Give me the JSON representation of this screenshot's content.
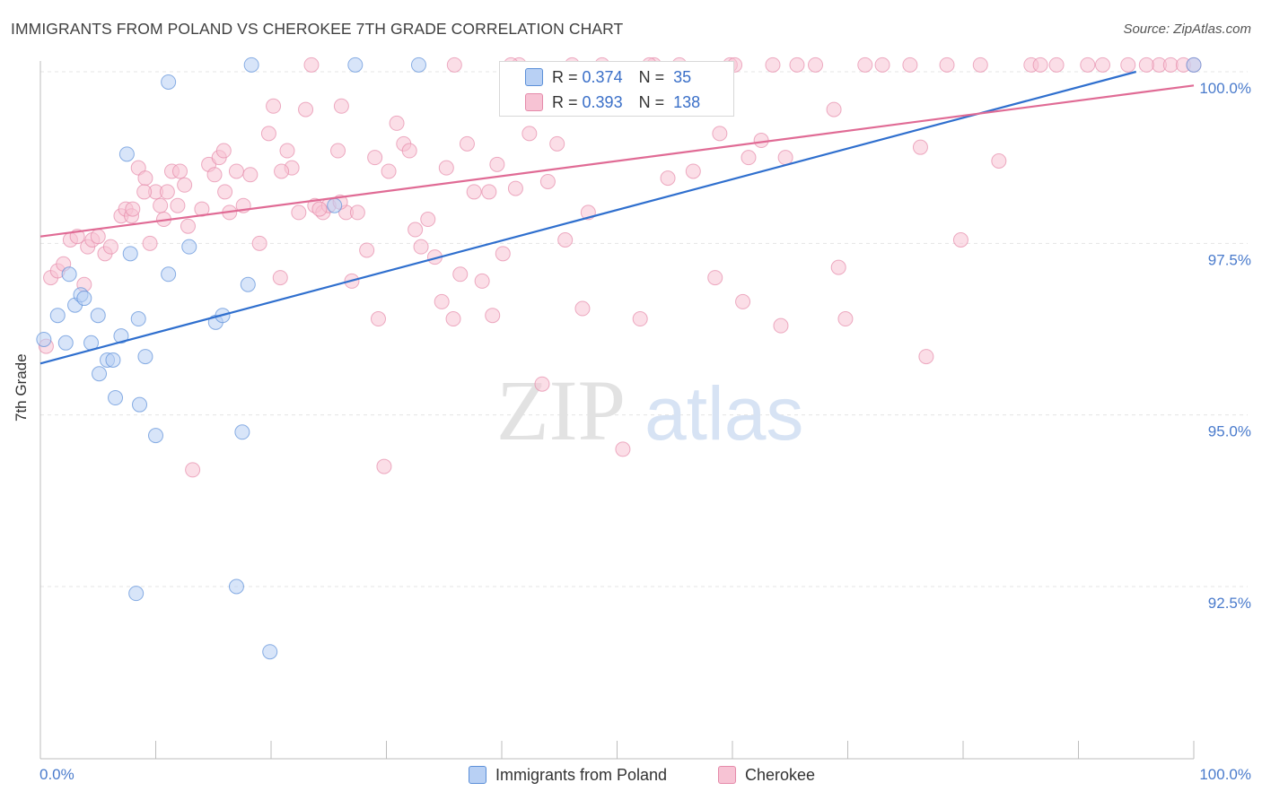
{
  "title": "IMMIGRANTS FROM POLAND VS CHEROKEE 7TH GRADE CORRELATION CHART",
  "source": "Source: ZipAtlas.com",
  "watermark": {
    "zip": "ZIP",
    "atlas": "atlas"
  },
  "colors": {
    "poland_fill": "#b8d0f4",
    "poland_stroke": "#5b8fd8",
    "poland_line": "#2f6fce",
    "cherokee_fill": "#f7c3d4",
    "cherokee_stroke": "#e58aaa",
    "cherokee_line": "#e06b95",
    "tick_label": "#4a7bcc",
    "grid": "#e4e4e4"
  },
  "legend_top": {
    "rows": [
      {
        "r_label": "R =",
        "r_value": "0.374",
        "n_label": "N =",
        "n_value": "35"
      },
      {
        "r_label": "R =",
        "r_value": "0.393",
        "n_label": "N =",
        "n_value": "138"
      }
    ]
  },
  "legend_bottom": {
    "items": [
      "Immigrants from Poland",
      "Cherokee"
    ]
  },
  "chart_data": {
    "type": "scatter",
    "title": "IMMIGRANTS FROM POLAND VS CHEROKEE 7TH GRADE CORRELATION CHART",
    "xlabel": "",
    "ylabel": "7th Grade",
    "xlim": [
      0,
      100
    ],
    "ylim": [
      90.5,
      100.2
    ],
    "x_tick_labels": [
      "0.0%",
      "100.0%"
    ],
    "y_ticks": [
      92.5,
      95.0,
      97.5,
      100.0
    ],
    "y_tick_labels": [
      "92.5%",
      "95.0%",
      "97.5%",
      "100.0%"
    ],
    "grid": "horizontal dashed",
    "legend_position": "top-center and bottom",
    "series": [
      {
        "name": "Immigrants from Poland",
        "r": 0.374,
        "n": 35,
        "trend": {
          "x": [
            0,
            95
          ],
          "y": [
            95.75,
            100.0
          ]
        },
        "points": [
          [
            0.3,
            96.1
          ],
          [
            1.5,
            96.45
          ],
          [
            2.2,
            96.05
          ],
          [
            2.5,
            97.05
          ],
          [
            3.0,
            96.6
          ],
          [
            3.5,
            96.75
          ],
          [
            3.8,
            96.7
          ],
          [
            4.4,
            96.05
          ],
          [
            5.0,
            96.45
          ],
          [
            5.8,
            95.8
          ],
          [
            6.5,
            95.25
          ],
          [
            7.0,
            96.15
          ],
          [
            7.5,
            98.8
          ],
          [
            7.8,
            97.35
          ],
          [
            8.3,
            92.4
          ],
          [
            8.5,
            96.4
          ],
          [
            8.6,
            95.15
          ],
          [
            9.1,
            95.85
          ],
          [
            10.0,
            94.7
          ],
          [
            11.1,
            97.05
          ],
          [
            11.1,
            99.85
          ],
          [
            12.9,
            97.45
          ],
          [
            15.2,
            96.35
          ],
          [
            15.8,
            96.45
          ],
          [
            17.0,
            92.5
          ],
          [
            17.5,
            94.75
          ],
          [
            18.0,
            96.9
          ],
          [
            18.3,
            100.4
          ],
          [
            19.9,
            91.55
          ],
          [
            25.5,
            98.05
          ],
          [
            27.3,
            100.4
          ],
          [
            32.8,
            100.4
          ],
          [
            5.1,
            95.6
          ],
          [
            6.3,
            95.8
          ],
          [
            100,
            100.4
          ]
        ]
      },
      {
        "name": "Cherokee",
        "r": 0.393,
        "n": 138,
        "trend": {
          "x": [
            0,
            100
          ],
          "y": [
            97.6,
            99.8
          ]
        },
        "points": [
          [
            0.5,
            96.0
          ],
          [
            0.9,
            97.0
          ],
          [
            1.5,
            97.1
          ],
          [
            2.0,
            97.2
          ],
          [
            2.6,
            97.55
          ],
          [
            3.2,
            97.6
          ],
          [
            3.8,
            96.9
          ],
          [
            4.1,
            97.45
          ],
          [
            4.5,
            97.55
          ],
          [
            5.0,
            97.6
          ],
          [
            5.6,
            97.35
          ],
          [
            6.1,
            97.45
          ],
          [
            7.0,
            97.9
          ],
          [
            7.4,
            98.0
          ],
          [
            7.9,
            97.9
          ],
          [
            8.5,
            98.6
          ],
          [
            9.1,
            98.45
          ],
          [
            9.5,
            97.5
          ],
          [
            10.0,
            98.25
          ],
          [
            10.4,
            98.05
          ],
          [
            11.0,
            98.25
          ],
          [
            11.4,
            98.55
          ],
          [
            11.9,
            98.05
          ],
          [
            12.5,
            98.35
          ],
          [
            12.8,
            97.75
          ],
          [
            13.2,
            94.2
          ],
          [
            14.0,
            98.0
          ],
          [
            14.6,
            98.65
          ],
          [
            15.1,
            98.5
          ],
          [
            15.5,
            98.75
          ],
          [
            16.0,
            98.25
          ],
          [
            16.4,
            97.95
          ],
          [
            17.0,
            98.55
          ],
          [
            17.6,
            98.05
          ],
          [
            18.2,
            98.5
          ],
          [
            19.0,
            97.5
          ],
          [
            19.8,
            99.1
          ],
          [
            20.2,
            99.5
          ],
          [
            20.8,
            97.0
          ],
          [
            21.4,
            98.85
          ],
          [
            21.8,
            98.6
          ],
          [
            22.4,
            97.95
          ],
          [
            23.0,
            99.45
          ],
          [
            23.8,
            98.05
          ],
          [
            24.5,
            97.95
          ],
          [
            25.0,
            98.05
          ],
          [
            25.8,
            98.85
          ],
          [
            26.5,
            97.95
          ],
          [
            27.0,
            96.95
          ],
          [
            27.5,
            97.95
          ],
          [
            28.3,
            97.4
          ],
          [
            29.0,
            98.75
          ],
          [
            29.8,
            94.25
          ],
          [
            30.2,
            98.55
          ],
          [
            30.9,
            99.25
          ],
          [
            31.5,
            98.95
          ],
          [
            32.0,
            98.85
          ],
          [
            32.5,
            97.7
          ],
          [
            33.0,
            97.45
          ],
          [
            33.6,
            97.85
          ],
          [
            34.2,
            97.3
          ],
          [
            34.8,
            96.65
          ],
          [
            35.2,
            98.6
          ],
          [
            35.8,
            96.4
          ],
          [
            36.4,
            97.05
          ],
          [
            37.0,
            98.95
          ],
          [
            37.6,
            98.25
          ],
          [
            38.3,
            96.95
          ],
          [
            38.9,
            98.25
          ],
          [
            39.6,
            98.65
          ],
          [
            40.1,
            97.35
          ],
          [
            41.2,
            98.3
          ],
          [
            42.4,
            99.1
          ],
          [
            43.5,
            95.45
          ],
          [
            44.0,
            98.4
          ],
          [
            44.8,
            98.95
          ],
          [
            45.5,
            97.55
          ],
          [
            46.1,
            100.4
          ],
          [
            47.5,
            97.95
          ],
          [
            48.7,
            100.4
          ],
          [
            50.5,
            94.5
          ],
          [
            52.0,
            96.4
          ],
          [
            53.2,
            100.4
          ],
          [
            54.4,
            98.45
          ],
          [
            56.6,
            98.55
          ],
          [
            58.5,
            97.0
          ],
          [
            58.9,
            99.1
          ],
          [
            59.8,
            100.4
          ],
          [
            60.9,
            96.65
          ],
          [
            61.4,
            98.75
          ],
          [
            62.5,
            99.0
          ],
          [
            64.2,
            96.3
          ],
          [
            64.6,
            98.75
          ],
          [
            65.6,
            100.4
          ],
          [
            67.2,
            100.4
          ],
          [
            68.8,
            99.45
          ],
          [
            69.2,
            97.15
          ],
          [
            69.8,
            96.4
          ],
          [
            71.5,
            100.4
          ],
          [
            73.0,
            100.4
          ],
          [
            75.4,
            100.4
          ],
          [
            76.3,
            98.9
          ],
          [
            76.8,
            95.85
          ],
          [
            78.6,
            100.4
          ],
          [
            79.8,
            97.55
          ],
          [
            81.5,
            100.4
          ],
          [
            83.1,
            98.7
          ],
          [
            85.9,
            100.4
          ],
          [
            88.1,
            100.4
          ],
          [
            90.8,
            100.4
          ],
          [
            92.1,
            100.4
          ],
          [
            94.3,
            100.4
          ],
          [
            97.0,
            100.4
          ],
          [
            98.0,
            100.4
          ],
          [
            99.1,
            100.4
          ],
          [
            100,
            100.4
          ],
          [
            23.5,
            100.4
          ],
          [
            35.9,
            100.4
          ],
          [
            41.5,
            100.4
          ],
          [
            52.8,
            100.4
          ],
          [
            60.2,
            100.4
          ],
          [
            63.5,
            100.4
          ],
          [
            86.7,
            100.4
          ],
          [
            95.9,
            100.4
          ],
          [
            12.1,
            98.55
          ],
          [
            10.7,
            97.85
          ],
          [
            26.0,
            98.1
          ],
          [
            20.9,
            98.55
          ],
          [
            15.9,
            98.85
          ],
          [
            40.8,
            100.4
          ],
          [
            55.4,
            100.4
          ],
          [
            47.0,
            96.55
          ],
          [
            29.3,
            96.4
          ],
          [
            26.1,
            99.5
          ],
          [
            9.0,
            98.25
          ],
          [
            39.2,
            96.45
          ],
          [
            24.2,
            98.0
          ],
          [
            8.0,
            98.0
          ]
        ]
      }
    ]
  }
}
